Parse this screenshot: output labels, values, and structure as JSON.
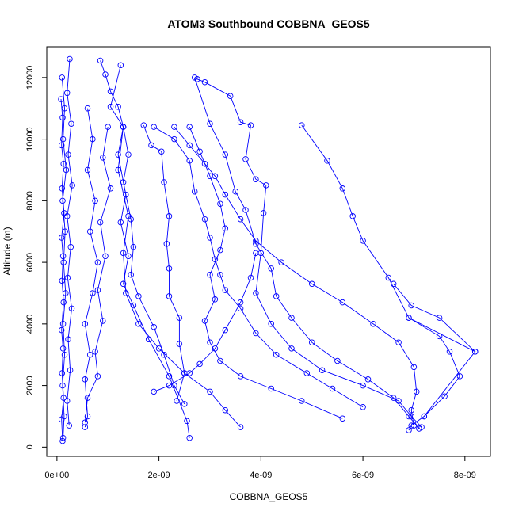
{
  "chart_data": {
    "type": "line",
    "title": "ATOM3 Southbound COBBNA_GEOS5",
    "xlabel": "COBBNA_GEOS5",
    "ylabel": "Altitude (m)",
    "xlim": [
      -2e-10,
      8.5e-09
    ],
    "ylim": [
      -300,
      13000
    ],
    "xticks": [
      0,
      2e-09,
      4e-09,
      6e-09,
      8e-09
    ],
    "xtick_labels": [
      "0e+00",
      "2e-09",
      "4e-09",
      "6e-09",
      "8e-09"
    ],
    "yticks": [
      0,
      2000,
      4000,
      6000,
      8000,
      10000,
      12000
    ],
    "ytick_labels": [
      "0",
      "2000",
      "4000",
      "6000",
      "8000",
      "10000",
      "12000"
    ],
    "grid": false,
    "marker": "open-circle",
    "color": "#0000ff",
    "series": [
      {
        "points": [
          [
            1e-10,
            12000
          ],
          [
            1.5e-10,
            11000
          ],
          [
            1.2e-10,
            10000
          ],
          [
            1.8e-10,
            9000
          ],
          [
            1.1e-10,
            8000
          ],
          [
            1.6e-10,
            7000
          ],
          [
            1.3e-10,
            6000
          ],
          [
            1.7e-10,
            5000
          ],
          [
            1.2e-10,
            4000
          ],
          [
            1.5e-10,
            3000
          ],
          [
            1.1e-10,
            2000
          ],
          [
            1.4e-10,
            1000
          ],
          [
            1.2e-10,
            300
          ]
        ]
      },
      {
        "points": [
          [
            2.5e-10,
            12600
          ],
          [
            2e-10,
            11500
          ],
          [
            2.8e-10,
            10500
          ],
          [
            2.2e-10,
            9500
          ],
          [
            3e-10,
            8500
          ],
          [
            2e-10,
            7500
          ],
          [
            2.7e-10,
            6500
          ],
          [
            2.1e-10,
            5500
          ],
          [
            2.9e-10,
            4500
          ],
          [
            2.2e-10,
            3500
          ],
          [
            2.6e-10,
            2500
          ],
          [
            2e-10,
            1500
          ],
          [
            2.4e-10,
            700
          ]
        ]
      },
      {
        "points": [
          [
            8e-11,
            11300
          ],
          [
            1.1e-10,
            10700
          ],
          [
            9e-11,
            9800
          ],
          [
            1.3e-10,
            9200
          ],
          [
            1e-10,
            8400
          ],
          [
            1.4e-10,
            7600
          ],
          [
            9e-11,
            6800
          ],
          [
            1.2e-10,
            6200
          ],
          [
            1e-10,
            5400
          ],
          [
            1.3e-10,
            4700
          ],
          [
            9e-11,
            3800
          ],
          [
            1.2e-10,
            3200
          ],
          [
            1e-10,
            2400
          ],
          [
            1.3e-10,
            1600
          ],
          [
            9e-11,
            900
          ],
          [
            1.1e-10,
            200
          ]
        ]
      },
      {
        "points": [
          [
            1.25e-09,
            12400
          ],
          [
            1.05e-09,
            11050
          ],
          [
            1.3e-09,
            10400
          ],
          [
            1.2e-09,
            9500
          ],
          [
            1.35e-09,
            8200
          ],
          [
            1.25e-09,
            7300
          ],
          [
            1.4e-09,
            6200
          ],
          [
            1.3e-09,
            5300
          ],
          [
            1.5e-09,
            4600
          ],
          [
            1.8e-09,
            3500
          ],
          [
            2.2e-09,
            2300
          ],
          [
            2.55e-09,
            850
          ],
          [
            2.6e-09,
            300
          ]
        ]
      },
      {
        "points": [
          [
            1.3e-09,
            10400
          ],
          [
            1.2e-09,
            9000
          ],
          [
            1.4e-09,
            7500
          ],
          [
            1.3e-09,
            6300
          ],
          [
            1.35e-09,
            5000
          ],
          [
            1.6e-09,
            4000
          ],
          [
            2e-09,
            3200
          ],
          [
            2.5e-09,
            2400
          ],
          [
            3e-09,
            1800
          ],
          [
            3.3e-09,
            1200
          ],
          [
            3.6e-09,
            650
          ]
        ]
      },
      {
        "points": [
          [
            1e-09,
            10400
          ],
          [
            9e-10,
            9400
          ],
          [
            1.05e-09,
            8400
          ],
          [
            8.5e-10,
            7300
          ],
          [
            9.5e-10,
            6200
          ],
          [
            8e-10,
            5100
          ],
          [
            9e-10,
            4100
          ],
          [
            7.5e-10,
            3100
          ],
          [
            8e-10,
            2300
          ],
          [
            6e-10,
            1600
          ],
          [
            5.5e-10,
            800
          ]
        ]
      },
      {
        "points": [
          [
            8.5e-10,
            12550
          ],
          [
            9.5e-10,
            12100
          ],
          [
            1.05e-09,
            11550
          ],
          [
            1.2e-09,
            11050
          ],
          [
            1.3e-09,
            10400
          ],
          [
            1.4e-09,
            9500
          ],
          [
            1.3e-09,
            8600
          ],
          [
            1.45e-09,
            7400
          ],
          [
            1.5e-09,
            6500
          ],
          [
            1.45e-09,
            5600
          ],
          [
            1.6e-09,
            4900
          ],
          [
            1.9e-09,
            3900
          ],
          [
            2.1e-09,
            3000
          ],
          [
            2.3e-09,
            2000
          ],
          [
            2.5e-09,
            1400
          ]
        ]
      },
      {
        "points": [
          [
            6e-10,
            11000
          ],
          [
            7e-10,
            10000
          ],
          [
            6e-10,
            9000
          ],
          [
            7.5e-10,
            8000
          ],
          [
            6.5e-10,
            7000
          ],
          [
            8e-10,
            6000
          ],
          [
            7e-10,
            5000
          ],
          [
            5.5e-10,
            4000
          ],
          [
            6.5e-10,
            3000
          ],
          [
            5.5e-10,
            2200
          ],
          [
            6e-10,
            1000
          ],
          [
            5.5e-10,
            650
          ]
        ]
      },
      {
        "points": [
          [
            1.7e-09,
            10450
          ],
          [
            1.85e-09,
            9800
          ],
          [
            2.05e-09,
            9600
          ],
          [
            2.1e-09,
            8600
          ],
          [
            2.2e-09,
            7500
          ],
          [
            2.15e-09,
            6600
          ],
          [
            2.2e-09,
            5800
          ],
          [
            2.2e-09,
            4900
          ],
          [
            2.4e-09,
            4200
          ],
          [
            2.4e-09,
            3350
          ],
          [
            2.5e-09,
            2400
          ],
          [
            2.35e-09,
            1500
          ]
        ]
      },
      {
        "points": [
          [
            2.75e-09,
            11950
          ],
          [
            2.9e-09,
            11850
          ],
          [
            3.4e-09,
            11400
          ],
          [
            3.6e-09,
            10550
          ],
          [
            3.8e-09,
            10450
          ],
          [
            3.7e-09,
            9350
          ],
          [
            3.9e-09,
            8700
          ],
          [
            4.1e-09,
            8500
          ],
          [
            4.05e-09,
            7600
          ],
          [
            4e-09,
            6300
          ],
          [
            3.9e-09,
            5000
          ],
          [
            4.2e-09,
            4000
          ],
          [
            4.6e-09,
            3200
          ],
          [
            5.2e-09,
            2500
          ],
          [
            6e-09,
            2000
          ],
          [
            6.7e-09,
            1500
          ],
          [
            6.95e-09,
            1000
          ],
          [
            7.15e-09,
            650
          ]
        ]
      },
      {
        "points": [
          [
            2.7e-09,
            12000
          ],
          [
            3e-09,
            10500
          ],
          [
            3.3e-09,
            9500
          ],
          [
            3.5e-09,
            8300
          ],
          [
            3.7e-09,
            7700
          ],
          [
            3.9e-09,
            6600
          ],
          [
            4.2e-09,
            5800
          ],
          [
            4.3e-09,
            4900
          ],
          [
            4.6e-09,
            4200
          ],
          [
            5e-09,
            3400
          ],
          [
            5.5e-09,
            2800
          ],
          [
            6.1e-09,
            2200
          ],
          [
            6.6e-09,
            1600
          ],
          [
            6.9e-09,
            1000
          ],
          [
            7.1e-09,
            600
          ]
        ]
      },
      {
        "points": [
          [
            4.8e-09,
            10450
          ],
          [
            5.3e-09,
            9300
          ],
          [
            5.6e-09,
            8400
          ],
          [
            5.8e-09,
            7500
          ],
          [
            6e-09,
            6700
          ],
          [
            6.5e-09,
            5500
          ],
          [
            6.9e-09,
            4200
          ],
          [
            7.5e-09,
            3600
          ],
          [
            7.7e-09,
            3100
          ],
          [
            7.9e-09,
            2300
          ],
          [
            7.6e-09,
            1650
          ],
          [
            7.2e-09,
            1000
          ]
        ]
      },
      {
        "points": [
          [
            2.3e-09,
            10400
          ],
          [
            2.6e-09,
            9800
          ],
          [
            2.9e-09,
            9200
          ],
          [
            3.1e-09,
            8800
          ],
          [
            3.3e-09,
            8200
          ],
          [
            3.6e-09,
            7400
          ],
          [
            3.9e-09,
            6700
          ],
          [
            4.4e-09,
            6000
          ],
          [
            5e-09,
            5300
          ],
          [
            5.6e-09,
            4700
          ],
          [
            6.2e-09,
            4000
          ],
          [
            6.7e-09,
            3400
          ],
          [
            7e-09,
            2600
          ],
          [
            7.05e-09,
            1800
          ],
          [
            6.95e-09,
            1200
          ],
          [
            7e-09,
            700
          ]
        ]
      },
      {
        "points": [
          [
            2.6e-09,
            10400
          ],
          [
            2.8e-09,
            9600
          ],
          [
            3e-09,
            8800
          ],
          [
            3.2e-09,
            7900
          ],
          [
            3.3e-09,
            7100
          ],
          [
            3.2e-09,
            6400
          ],
          [
            3e-09,
            5600
          ],
          [
            3.1e-09,
            4800
          ],
          [
            2.9e-09,
            4100
          ],
          [
            3e-09,
            3400
          ],
          [
            3.2e-09,
            2800
          ],
          [
            3.6e-09,
            2300
          ],
          [
            4.2e-09,
            1900
          ],
          [
            4.8e-09,
            1500
          ],
          [
            5.6e-09,
            930
          ]
        ]
      },
      {
        "points": [
          [
            1.9e-09,
            10400
          ],
          [
            2.3e-09,
            10000
          ],
          [
            2.6e-09,
            9300
          ],
          [
            2.7e-09,
            8300
          ],
          [
            2.9e-09,
            7400
          ],
          [
            3e-09,
            6800
          ],
          [
            3.1e-09,
            6100
          ],
          [
            3.2e-09,
            5600
          ],
          [
            3.3e-09,
            5100
          ],
          [
            3.6e-09,
            4500
          ],
          [
            3.9e-09,
            3700
          ],
          [
            4.3e-09,
            3000
          ],
          [
            4.9e-09,
            2400
          ],
          [
            5.4e-09,
            1900
          ],
          [
            6e-09,
            1300
          ]
        ]
      },
      {
        "points": [
          [
            6.9e-09,
            4200
          ],
          [
            8.2e-09,
            3100
          ],
          [
            7.2e-09,
            1000
          ],
          [
            6.95e-09,
            700
          ],
          [
            6.9e-09,
            550
          ]
        ]
      },
      {
        "points": [
          [
            6.6e-09,
            5300
          ],
          [
            6.95e-09,
            4600
          ],
          [
            7.5e-09,
            4200
          ],
          [
            8.2e-09,
            3100
          ]
        ]
      },
      {
        "points": [
          [
            3.9e-09,
            6300
          ],
          [
            3.8e-09,
            5500
          ],
          [
            3.6e-09,
            4700
          ],
          [
            3.3e-09,
            3800
          ],
          [
            3.1e-09,
            3200
          ],
          [
            2.8e-09,
            2700
          ],
          [
            2.6e-09,
            2400
          ],
          [
            2.2e-09,
            2000
          ],
          [
            1.9e-09,
            1800
          ]
        ]
      }
    ]
  }
}
